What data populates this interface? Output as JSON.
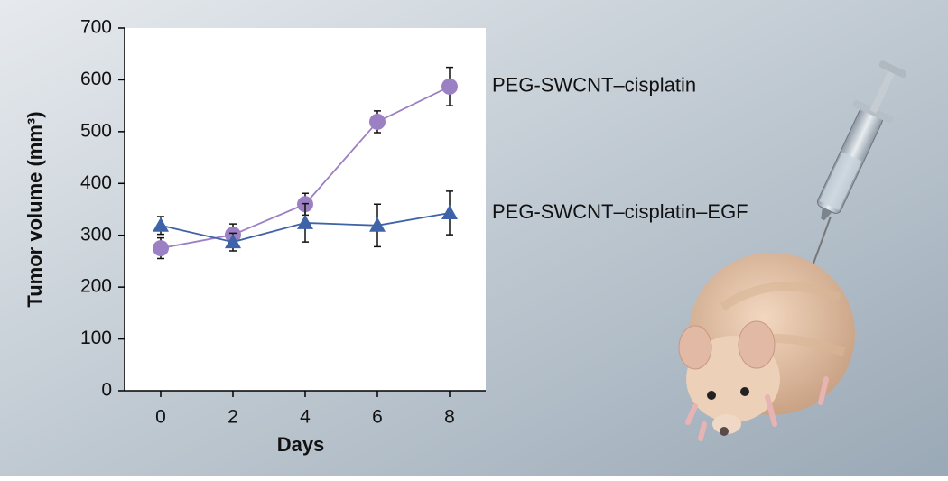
{
  "chart_data": {
    "type": "line",
    "x_label": "Days",
    "y_label": "Tumor volume (mm³)",
    "x": [
      0,
      2,
      4,
      6,
      8
    ],
    "xlim": [
      -1,
      9
    ],
    "xticks": [
      0,
      2,
      4,
      6,
      8
    ],
    "ylim": [
      0,
      700
    ],
    "yticks": [
      0,
      100,
      200,
      300,
      400,
      500,
      600,
      700
    ],
    "series": [
      {
        "name": "PEG-SWCNT–cisplatin",
        "color": "#9c80c4",
        "marker": "circle",
        "values": [
          275,
          301,
          360,
          519,
          587
        ],
        "errors": [
          20,
          21,
          21,
          21,
          37
        ]
      },
      {
        "name": "PEG-SWCNT–cisplatin–EGF",
        "color": "#3f63a8",
        "marker": "triangle",
        "values": [
          319,
          287,
          324,
          319,
          343
        ],
        "errors": [
          17,
          17,
          37,
          41,
          42
        ]
      }
    ]
  }
}
